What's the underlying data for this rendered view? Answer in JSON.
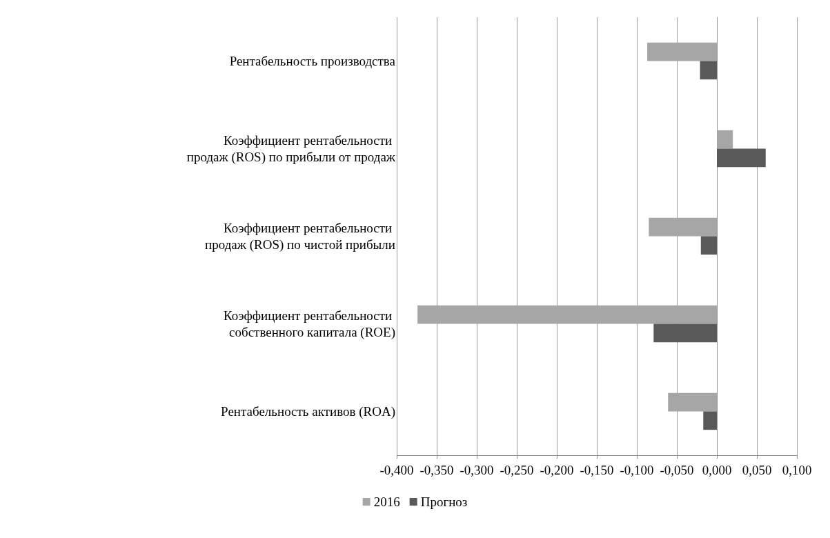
{
  "chart_data": {
    "type": "bar",
    "orientation": "horizontal",
    "categories": [
      "Рентабельность производства",
      "Коэффициент рентабельности продаж (ROS) по прибыли от продаж",
      "Коэффициент рентабельности продаж (ROS) по чистой прибыли",
      "Коэффициент рентабельности собственного капитала (ROE)",
      "Рентабельность активов (ROA)"
    ],
    "series": [
      {
        "name": "2016",
        "color": "#a6a6a6",
        "values": [
          -0.087,
          0.02,
          -0.085,
          -0.374,
          -0.061
        ]
      },
      {
        "name": "Прогноз",
        "color": "#595959",
        "values": [
          -0.021,
          0.061,
          -0.02,
          -0.079,
          -0.017
        ]
      }
    ],
    "xlim": [
      -0.4,
      0.1
    ],
    "xticks": [
      {
        "value": -0.4,
        "label": "-0,400"
      },
      {
        "value": -0.35,
        "label": "-0,350"
      },
      {
        "value": -0.3,
        "label": "-0,300"
      },
      {
        "value": -0.25,
        "label": "-0,250"
      },
      {
        "value": -0.2,
        "label": "-0,200"
      },
      {
        "value": -0.15,
        "label": "-0,150"
      },
      {
        "value": -0.1,
        "label": "-0,100"
      },
      {
        "value": -0.05,
        "label": "-0,050"
      },
      {
        "value": 0,
        "label": "0,000"
      },
      {
        "value": 0.05,
        "label": "0,050"
      },
      {
        "value": 0.1,
        "label": "0,100"
      }
    ],
    "grid": "x",
    "legend": "bottom"
  }
}
